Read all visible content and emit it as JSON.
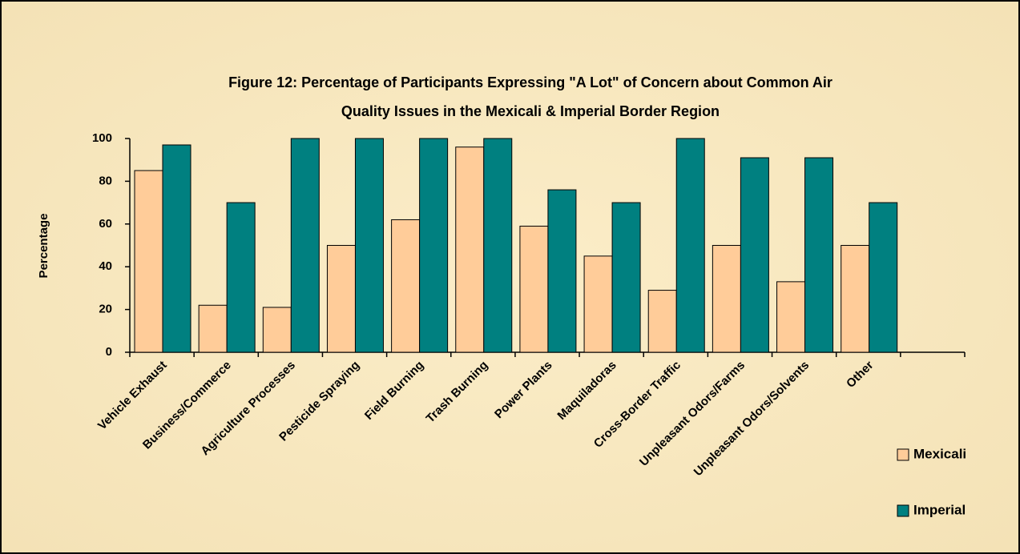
{
  "chart_data": {
    "type": "bar",
    "title": [
      "Figure 12:  Percentage of Participants Expressing \"A Lot\" of Concern about Common Air",
      "Quality Issues in the Mexicali & Imperial Border Region"
    ],
    "y_label": "Percentage",
    "categories": [
      "Vehicle Exhaust",
      "Business/Commerce",
      "Agriculture Processes",
      "Pesticide Spraying",
      "Field Burning",
      "Trash Burning",
      "Power Plants",
      "Maquiladoras",
      "Cross-Border Traffic",
      "Unpleasant Odors/Farms",
      "Unpleasant Odors/Solvents",
      "Other",
      null
    ],
    "series": [
      {
        "name": "Mexicali",
        "color": "#ffcc99",
        "values": [
          85,
          22,
          21,
          50,
          62,
          96,
          59,
          45,
          29,
          50,
          33,
          50,
          null
        ]
      },
      {
        "name": "Imperial",
        "color": "#008080",
        "values": [
          97,
          70,
          100,
          100,
          100,
          100,
          76,
          70,
          100,
          91,
          91,
          70,
          null
        ]
      }
    ],
    "ylim": [
      0,
      100
    ],
    "yticks": [
      0,
      20,
      40,
      60,
      80,
      100
    ],
    "grid": false,
    "legend": "right"
  }
}
